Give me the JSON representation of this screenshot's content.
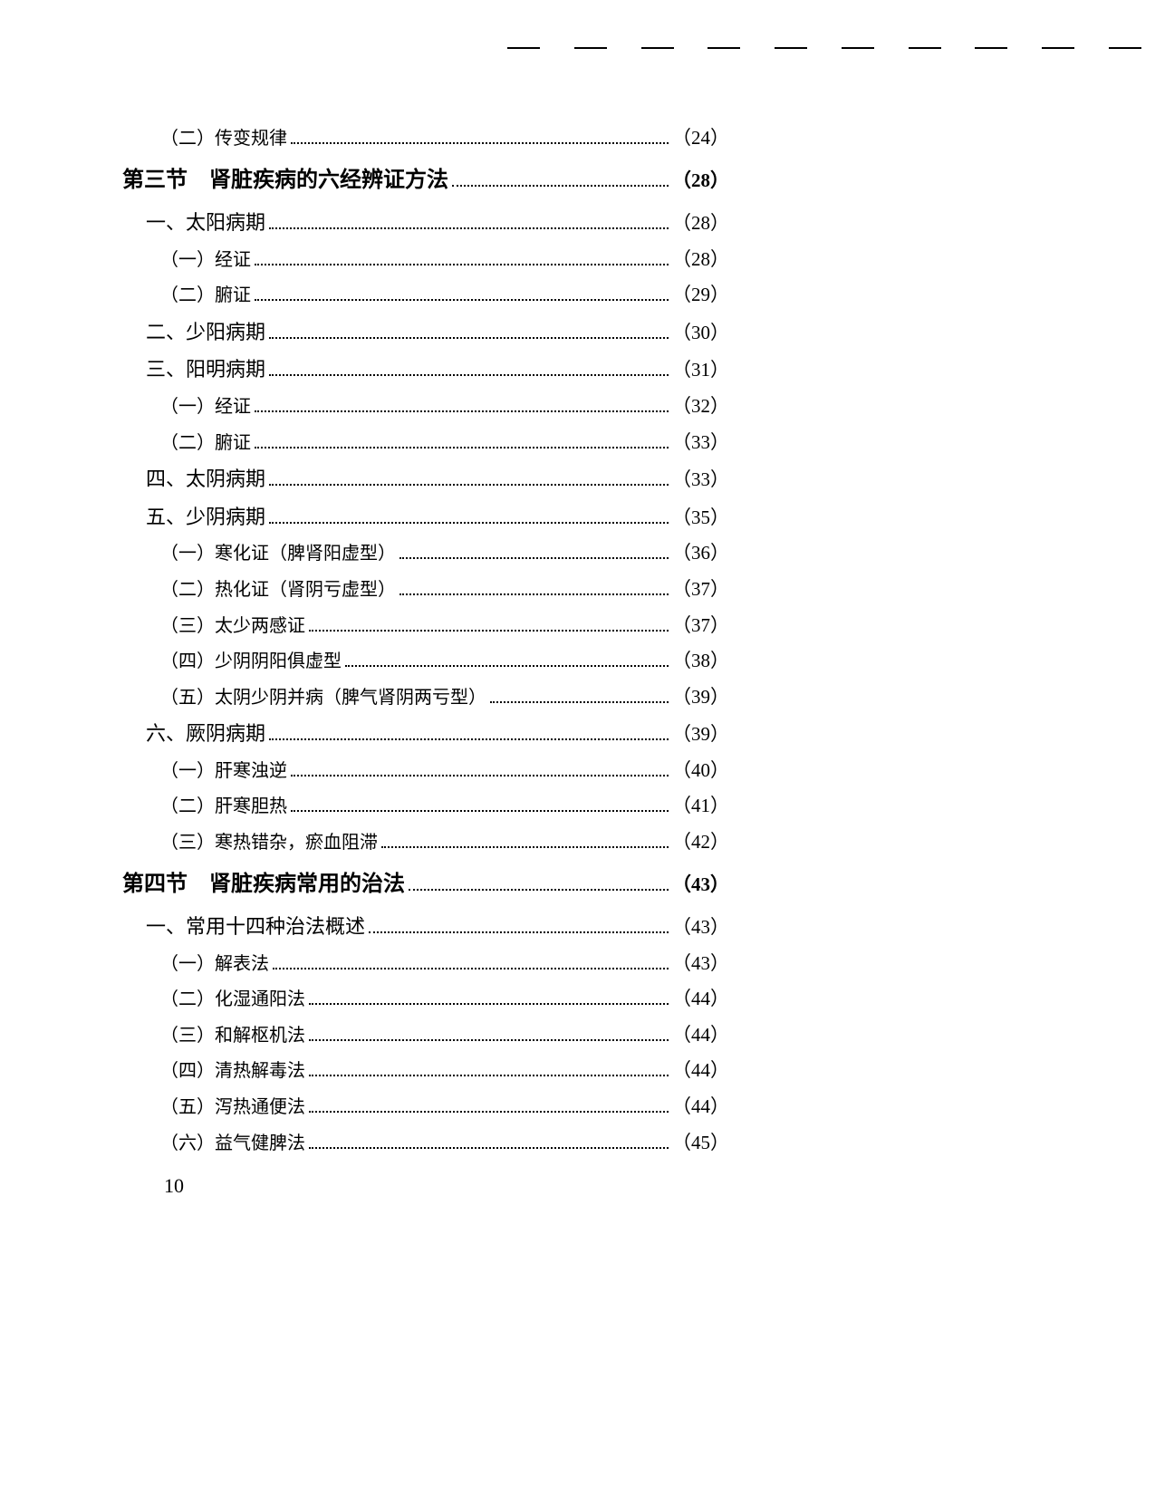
{
  "dashes": 10,
  "lines": [
    {
      "cls": "level2",
      "label": "（二）传变规律",
      "page": "（24）"
    },
    {
      "cls": "section",
      "label": "第三节　肾脏疾病的六经辨证方法",
      "page": "（28）"
    },
    {
      "cls": "level1",
      "label": "一、太阳病期",
      "page": "（28）"
    },
    {
      "cls": "level2",
      "label": "（一）经证",
      "page": "（28）"
    },
    {
      "cls": "level2",
      "label": "（二）腑证",
      "page": "（29）"
    },
    {
      "cls": "level1",
      "label": "二、少阳病期",
      "page": "（30）"
    },
    {
      "cls": "level1",
      "label": "三、阳明病期",
      "page": "（31）"
    },
    {
      "cls": "level2",
      "label": "（一）经证",
      "page": "（32）"
    },
    {
      "cls": "level2",
      "label": "（二）腑证",
      "page": "（33）"
    },
    {
      "cls": "level1",
      "label": "四、太阴病期",
      "page": "（33）"
    },
    {
      "cls": "level1",
      "label": "五、少阴病期",
      "page": "（35）"
    },
    {
      "cls": "level2",
      "label": "（一）寒化证（脾肾阳虚型）",
      "page": "（36）"
    },
    {
      "cls": "level2",
      "label": "（二）热化证（肾阴亏虚型）",
      "page": "（37）"
    },
    {
      "cls": "level2",
      "label": "（三）太少两感证",
      "page": "（37）"
    },
    {
      "cls": "level2",
      "label": "（四）少阴阴阳俱虚型",
      "page": "（38）"
    },
    {
      "cls": "level2",
      "label": "（五）太阴少阴并病（脾气肾阴两亏型）",
      "page": "（39）"
    },
    {
      "cls": "level1",
      "label": "六、厥阴病期",
      "page": "（39）"
    },
    {
      "cls": "level2",
      "label": "（一）肝寒浊逆",
      "page": "（40）"
    },
    {
      "cls": "level2",
      "label": "（二）肝寒胆热",
      "page": "（41）"
    },
    {
      "cls": "level2",
      "label": "（三）寒热错杂，瘀血阻滞",
      "page": "（42）"
    },
    {
      "cls": "section",
      "label": "第四节　肾脏疾病常用的治法",
      "page": "（43）"
    },
    {
      "cls": "level1",
      "label": "一、常用十四种治法概述",
      "page": "（43）"
    },
    {
      "cls": "level2",
      "label": "（一）解表法",
      "page": "（43）"
    },
    {
      "cls": "level2",
      "label": "（二）化湿通阳法",
      "page": "（44）"
    },
    {
      "cls": "level2",
      "label": "（三）和解枢机法",
      "page": "（44）"
    },
    {
      "cls": "level2",
      "label": "（四）清热解毒法",
      "page": "（44）"
    },
    {
      "cls": "level2",
      "label": "（五）泻热通便法",
      "page": "（44）"
    },
    {
      "cls": "level2",
      "label": "（六）益气健脾法",
      "page": "（45）"
    }
  ],
  "pageNumber": "10"
}
